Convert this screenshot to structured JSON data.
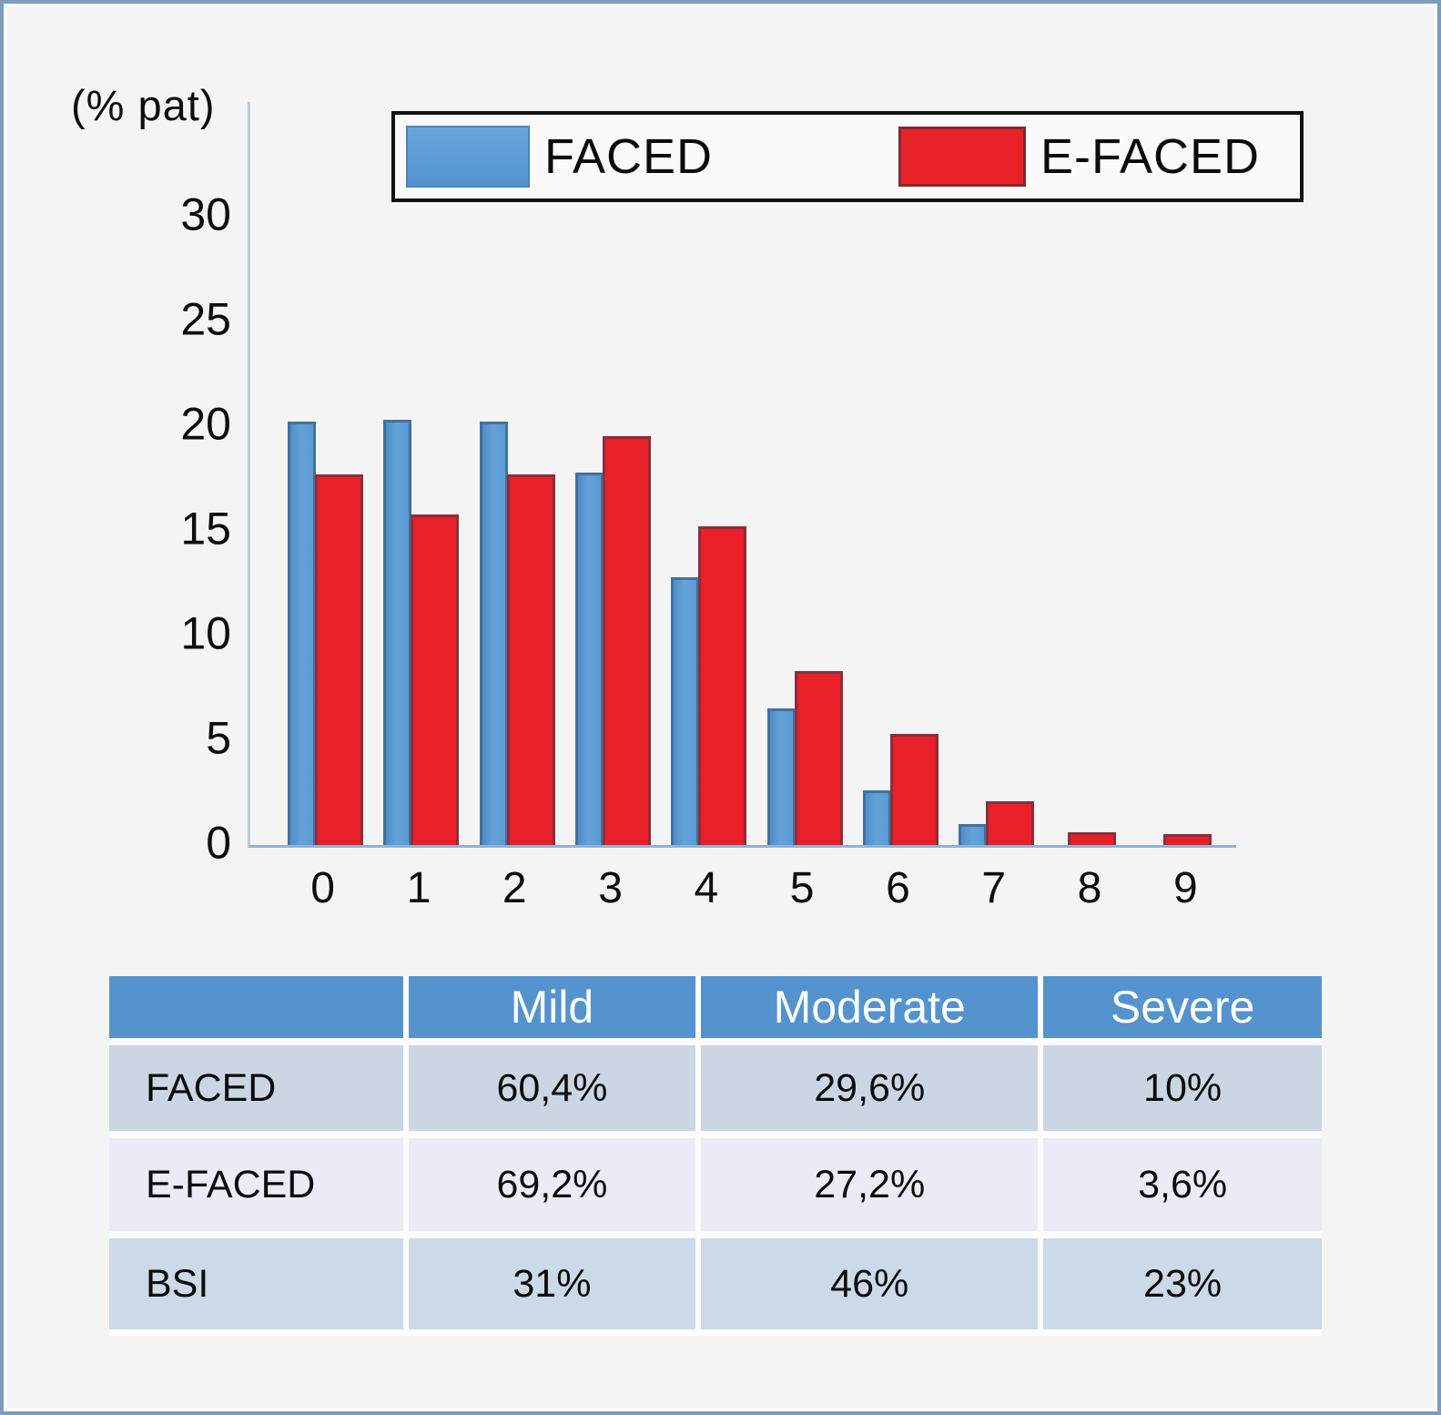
{
  "figure": {
    "y_axis_title": "(% pat)",
    "background": "#f4f4f5",
    "frame_border_color": "#7d9cba"
  },
  "chart_data": {
    "type": "bar",
    "title": "",
    "xlabel": "",
    "ylabel": "(% pat)",
    "categories": [
      "0",
      "1",
      "2",
      "3",
      "4",
      "5",
      "6",
      "7",
      "8",
      "9"
    ],
    "y_ticks": [
      0,
      5,
      10,
      15,
      20,
      25,
      30
    ],
    "ylim": [
      0,
      35
    ],
    "grid": false,
    "legend_position": "top",
    "series": [
      {
        "name": "FACED",
        "color": "#5b9bd5",
        "border_color": "#41719c",
        "values": [
          20.2,
          20.3,
          20.2,
          17.8,
          12.8,
          6.5,
          2.6,
          1.0,
          0,
          0
        ]
      },
      {
        "name": "E-FACED",
        "color": "#e92029",
        "border_color": "#8c2f3b",
        "values": [
          17.7,
          15.8,
          17.7,
          19.5,
          15.2,
          8.3,
          5.3,
          2.1,
          0.6,
          0.5
        ]
      }
    ]
  },
  "table": {
    "headers": [
      "",
      "Mild",
      "Moderate",
      "Severe"
    ],
    "header_bg": "#5493ce",
    "rows": [
      {
        "label": "FACED",
        "values": [
          "60,4%",
          "29,6%",
          "10%"
        ]
      },
      {
        "label": "E-FACED",
        "values": [
          "69,2%",
          "27,2%",
          "3,6%"
        ]
      },
      {
        "label": "BSI",
        "values": [
          "31%",
          "46%",
          "23%"
        ]
      }
    ]
  }
}
